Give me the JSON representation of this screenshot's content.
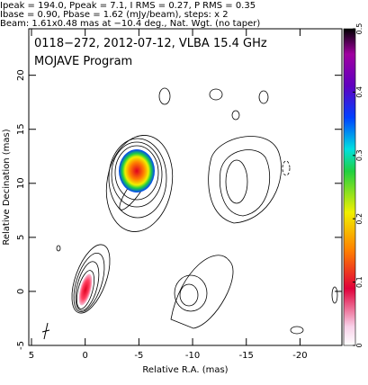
{
  "chart_data": {
    "type": "contour",
    "header": [
      "Ipeak = 194.0, Ppeak = 7.1, I RMS = 0.27, P RMS = 0.35",
      "Ibase = 0.90, Pbase = 1.62 (mJy/beam), steps: x 2",
      "Beam: 1.61x0.48 mas at −10.4 deg., Nat. Wgt. (no taper)"
    ],
    "title": "0118−272, 2012-07-12, VLBA 15.4 GHz",
    "subtitle": "MOJAVE Program",
    "xlabel": "Relative R.A. (mas)",
    "ylabel": "Relative Decination (mas)",
    "xlim": [
      5.25,
      -23.9
    ],
    "xticks": [
      5,
      0,
      -5,
      -10,
      -15,
      -20
    ],
    "ylim": [
      -5,
      24.3
    ],
    "yticks": [
      -5,
      0,
      5,
      10,
      15,
      20
    ],
    "colorbar": {
      "lim": [
        0,
        0.5
      ],
      "ticks": [
        0,
        0.1,
        0.2,
        0.3,
        0.4,
        0.5
      ]
    }
  }
}
